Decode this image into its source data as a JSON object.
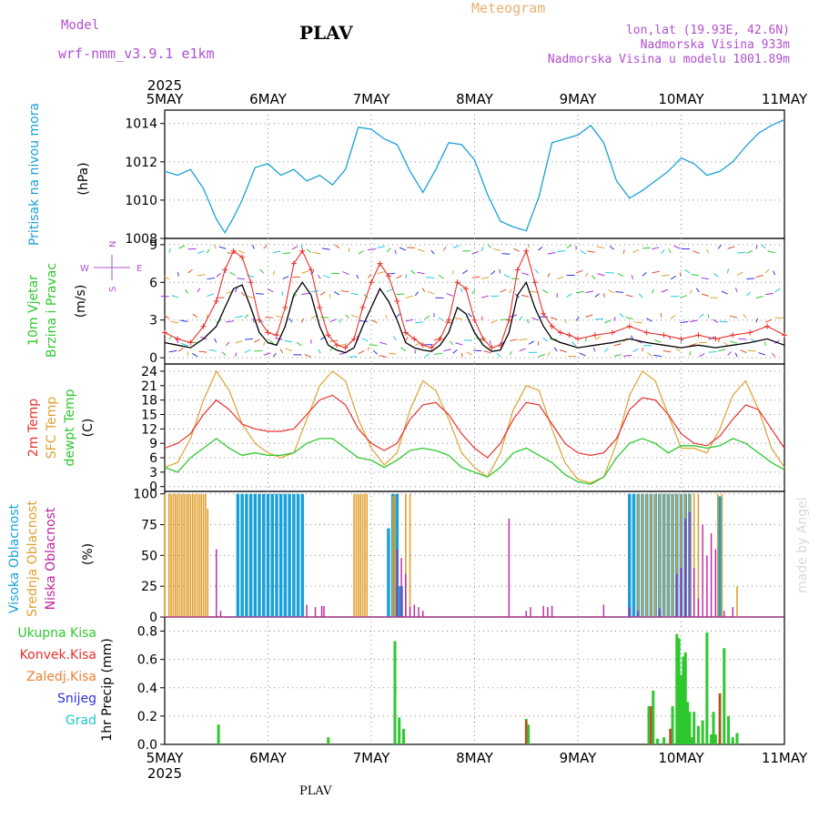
{
  "header": {
    "model_label": "Model",
    "model_name": "wrf-nmm_v3.9.1  e1km",
    "station": "PLAV",
    "product": "Meteogram",
    "lonlat": "lon,lat (19.93E, 42.6N)",
    "altitude": "Nadmorska Visina 933m",
    "model_altitude": "Nadmorska Visina u modelu 1001.89m",
    "footer_station": "PLAV",
    "watermark": "made by Angel"
  },
  "colors": {
    "pressure": "#1aa0d8",
    "wind_speed": "#000000",
    "gust": "#e8302a",
    "t2m": "#e8302a",
    "tsfc": "#e0a030",
    "dewpoint": "#2ec82e",
    "cloud_high": "#1aa0d8",
    "cloud_mid": "#e0a030",
    "cloud_low": "#c020a0",
    "rain_total": "#2ec82e",
    "rain_conv": "#e8302a",
    "rain_frz": "#f08030",
    "snow": "#3030e0",
    "hail": "#20c8c8",
    "purple_text": "#b050d0",
    "orange_text": "#e8b070"
  },
  "time_axis": {
    "year": "2025",
    "ticks": [
      "5MAY",
      "6MAY",
      "7MAY",
      "8MAY",
      "9MAY",
      "10MAY",
      "11MAY"
    ],
    "range_hours": [
      0,
      144
    ]
  },
  "chart_data": [
    {
      "type": "line",
      "panel": "pressure",
      "ylabel": "Pritisak na nivou mora",
      "unit": "(hPa)",
      "yticks": [
        1008,
        1010,
        1012,
        1014
      ],
      "ylim": [
        1008,
        1014.7
      ],
      "series": [
        {
          "x": [
            0,
            3,
            6,
            9,
            12,
            14,
            16,
            18,
            21,
            24,
            27,
            30,
            33,
            36,
            39,
            42,
            45,
            48,
            51,
            54,
            57,
            60,
            63,
            66,
            69,
            72,
            75,
            78,
            81,
            84,
            87,
            90,
            93,
            96,
            99,
            102,
            105,
            108,
            111,
            114,
            117,
            120,
            123,
            126,
            129,
            132,
            135,
            138,
            141,
            144
          ],
          "values": [
            1011.5,
            1011.3,
            1011.6,
            1010.6,
            1009.0,
            1008.3,
            1009.1,
            1010.0,
            1011.7,
            1011.9,
            1011.3,
            1011.6,
            1011.0,
            1011.3,
            1010.8,
            1011.6,
            1013.8,
            1013.7,
            1013.2,
            1012.9,
            1011.5,
            1010.4,
            1011.6,
            1013.0,
            1012.9,
            1012.1,
            1010.3,
            1008.9,
            1008.6,
            1008.4,
            1010.2,
            1013.0,
            1013.2,
            1013.4,
            1013.9,
            1013.0,
            1011.0,
            1010.1,
            1010.5,
            1011.0,
            1011.5,
            1012.2,
            1011.9,
            1011.3,
            1011.5,
            1012.0,
            1012.8,
            1013.5,
            1013.9,
            1014.2
          ]
        }
      ]
    },
    {
      "type": "line",
      "panel": "wind",
      "ylabel": "10m Vjetar",
      "ylabel2": "Brzina i Pravac",
      "unit": "(m/s)",
      "compass": {
        "n": "N",
        "s": "S",
        "w": "W",
        "e": "E"
      },
      "yticks": [
        0,
        3,
        6,
        9
      ],
      "ylim": [
        -0.5,
        9.5
      ],
      "series": [
        {
          "name": "speed",
          "x": [
            0,
            3,
            6,
            9,
            12,
            14,
            16,
            18,
            20,
            22,
            24,
            26,
            28,
            30,
            32,
            34,
            36,
            38,
            40,
            42,
            44,
            46,
            48,
            50,
            52,
            54,
            56,
            58,
            60,
            62,
            64,
            66,
            68,
            70,
            72,
            74,
            76,
            78,
            80,
            82,
            84,
            86,
            88,
            90,
            92,
            94,
            96,
            100,
            104,
            108,
            112,
            116,
            120,
            124,
            128,
            132,
            136,
            140,
            144
          ],
          "values": [
            1.2,
            1.0,
            0.8,
            1.5,
            2.5,
            4.0,
            5.5,
            5.8,
            4.0,
            2.0,
            1.2,
            1.0,
            2.5,
            5.0,
            6.0,
            5.0,
            2.5,
            1.0,
            0.6,
            0.4,
            0.8,
            2.5,
            4.0,
            5.5,
            4.5,
            3.0,
            1.2,
            0.8,
            0.6,
            0.5,
            1.0,
            2.0,
            4.0,
            3.5,
            2.0,
            1.0,
            0.5,
            0.6,
            2.0,
            5.0,
            6.0,
            4.0,
            2.5,
            1.5,
            1.2,
            1.0,
            0.8,
            1.0,
            1.2,
            1.5,
            1.2,
            1.0,
            0.8,
            1.0,
            0.8,
            1.0,
            1.2,
            1.5,
            1.0
          ]
        },
        {
          "name": "gust",
          "x": [
            0,
            3,
            6,
            9,
            12,
            14,
            16,
            18,
            20,
            22,
            24,
            26,
            28,
            30,
            32,
            34,
            36,
            38,
            40,
            42,
            44,
            46,
            48,
            50,
            52,
            54,
            56,
            58,
            60,
            62,
            64,
            66,
            68,
            70,
            72,
            74,
            76,
            78,
            80,
            82,
            84,
            86,
            88,
            90,
            92,
            94,
            96,
            100,
            104,
            108,
            112,
            116,
            120,
            124,
            128,
            132,
            136,
            140,
            144
          ],
          "values": [
            2.0,
            1.5,
            1.2,
            2.5,
            4.5,
            7.0,
            8.5,
            8.0,
            6.0,
            3.0,
            2.0,
            1.8,
            4.0,
            7.5,
            8.5,
            7.0,
            4.0,
            1.8,
            1.0,
            0.8,
            1.5,
            4.0,
            6.0,
            7.5,
            6.5,
            4.5,
            2.0,
            1.5,
            1.0,
            0.8,
            1.5,
            3.0,
            6.0,
            5.5,
            3.0,
            1.5,
            0.8,
            1.0,
            3.0,
            7.0,
            8.5,
            6.0,
            3.5,
            2.5,
            2.0,
            1.8,
            1.5,
            1.8,
            2.0,
            2.5,
            2.0,
            1.8,
            1.5,
            1.8,
            1.5,
            1.8,
            2.0,
            2.5,
            1.8
          ]
        }
      ]
    },
    {
      "type": "line",
      "panel": "temperature",
      "ylabel": "2m Temp",
      "ylabel2": "SFC Temp",
      "ylabel3": "dewpt Temp",
      "unit": "(C)",
      "yticks": [
        0,
        3,
        6,
        9,
        12,
        15,
        18,
        21,
        24
      ],
      "ylim": [
        -1,
        25.5
      ],
      "series": [
        {
          "name": "2m",
          "x": [
            0,
            3,
            6,
            9,
            12,
            15,
            18,
            21,
            24,
            27,
            30,
            33,
            36,
            39,
            42,
            45,
            48,
            51,
            54,
            57,
            60,
            63,
            66,
            69,
            72,
            75,
            78,
            81,
            84,
            87,
            90,
            93,
            96,
            99,
            102,
            105,
            108,
            111,
            114,
            117,
            120,
            123,
            126,
            129,
            132,
            135,
            138,
            141,
            144
          ],
          "values": [
            8,
            9,
            11,
            15,
            18,
            16,
            13,
            12,
            11.5,
            11.5,
            12,
            15,
            18,
            19,
            17,
            12,
            9,
            7.5,
            9,
            14,
            17,
            17.5,
            15,
            11,
            8,
            6,
            9,
            14,
            17.5,
            17,
            13,
            9,
            7,
            6.5,
            7,
            10,
            16,
            18.5,
            18,
            15,
            11,
            9,
            8.5,
            10.5,
            14,
            17,
            16,
            12,
            8
          ]
        },
        {
          "name": "sfc",
          "x": [
            0,
            3,
            6,
            9,
            12,
            15,
            18,
            21,
            24,
            27,
            30,
            33,
            36,
            39,
            42,
            45,
            48,
            51,
            54,
            57,
            60,
            63,
            66,
            69,
            72,
            75,
            78,
            81,
            84,
            87,
            90,
            93,
            96,
            99,
            102,
            105,
            108,
            111,
            114,
            117,
            120,
            123,
            126,
            129,
            132,
            135,
            138,
            141,
            144
          ],
          "values": [
            4,
            5,
            10,
            18,
            24,
            20,
            13,
            9,
            7,
            6,
            7,
            14,
            21,
            24,
            22,
            14,
            8,
            4.5,
            7,
            16,
            22,
            20,
            14,
            7,
            4,
            2,
            7,
            16,
            21,
            20,
            12,
            5,
            1.5,
            0.8,
            2,
            9,
            19,
            24,
            22,
            15,
            8,
            8,
            7,
            12,
            19,
            22,
            16,
            8,
            4
          ]
        },
        {
          "name": "dewpoint",
          "x": [
            0,
            3,
            6,
            9,
            12,
            15,
            18,
            21,
            24,
            27,
            30,
            33,
            36,
            39,
            42,
            45,
            48,
            51,
            54,
            57,
            60,
            63,
            66,
            69,
            72,
            75,
            78,
            81,
            84,
            87,
            90,
            93,
            96,
            99,
            102,
            105,
            108,
            111,
            114,
            117,
            120,
            123,
            126,
            129,
            132,
            135,
            138,
            141,
            144
          ],
          "values": [
            4,
            3,
            6,
            8,
            10,
            8,
            6.5,
            7,
            6.5,
            6.5,
            7,
            9,
            10,
            10,
            8,
            6,
            5.5,
            4,
            5.5,
            7.5,
            8,
            7.5,
            6.5,
            4,
            3,
            2,
            4,
            7,
            8,
            6.5,
            5,
            2.5,
            1,
            0.5,
            2,
            6,
            9,
            10,
            9,
            7,
            8.5,
            8.5,
            8,
            8.5,
            10,
            9,
            7,
            5,
            3.5
          ]
        }
      ]
    },
    {
      "type": "bar",
      "panel": "clouds",
      "ylabel": "Visoka Oblacnost",
      "ylabel2": "Srednja Oblacnost",
      "ylabel3": "Niska Oblacnost",
      "unit": "(%)",
      "yticks": [
        0,
        25,
        50,
        75,
        100
      ],
      "ylim": [
        0,
        102
      ],
      "series": [
        {
          "name": "high",
          "x": [
            17,
            18,
            19,
            20,
            21,
            22,
            23,
            24,
            25,
            26,
            27,
            28,
            29,
            30,
            31,
            32,
            52,
            53,
            54,
            54.5,
            55,
            108,
            109,
            110,
            111,
            112,
            113,
            114,
            115,
            116,
            117,
            118,
            119,
            120,
            121,
            122,
            129
          ],
          "values": [
            100,
            100,
            100,
            100,
            100,
            100,
            100,
            100,
            100,
            100,
            100,
            100,
            100,
            100,
            100,
            100,
            72,
            100,
            100,
            25,
            25,
            100,
            100,
            100,
            100,
            100,
            100,
            100,
            100,
            100,
            100,
            100,
            100,
            100,
            100,
            100,
            98
          ]
        },
        {
          "name": "mid",
          "x": [
            0,
            1,
            1.5,
            2,
            2.5,
            3,
            3.5,
            4,
            4.5,
            5,
            5.5,
            6,
            6.5,
            7,
            7.5,
            8,
            8.5,
            9,
            9.5,
            10,
            44,
            44.5,
            45,
            45.5,
            46,
            46.5,
            47,
            53,
            53.5,
            56,
            57,
            110,
            111,
            112,
            113,
            114,
            115,
            116,
            117,
            118,
            119,
            120,
            121,
            122,
            123,
            124,
            128.5,
            129.5,
            133
          ],
          "values": [
            100,
            100,
            100,
            100,
            100,
            100,
            100,
            100,
            100,
            100,
            100,
            100,
            100,
            100,
            100,
            100,
            100,
            100,
            100,
            88,
            100,
            100,
            100,
            100,
            100,
            100,
            100,
            98,
            100,
            100,
            100,
            100,
            100,
            100,
            100,
            100,
            100,
            100,
            100,
            100,
            100,
            100,
            100,
            100,
            100,
            100,
            100,
            100,
            25
          ]
        },
        {
          "name": "low",
          "x": [
            12,
            13,
            33,
            35,
            36.5,
            37,
            54,
            55,
            56,
            57,
            58,
            59,
            60,
            80,
            84,
            85,
            88,
            89,
            90,
            102,
            108,
            110,
            115,
            119,
            120,
            121,
            122,
            123,
            124,
            125,
            126,
            127,
            128,
            130,
            132
          ],
          "values": [
            55,
            5,
            10,
            8,
            9,
            9,
            55,
            48,
            35,
            8,
            10,
            8,
            5,
            80,
            5,
            8,
            9,
            8,
            9,
            10,
            8,
            5,
            7,
            35,
            40,
            80,
            85,
            40,
            15,
            75,
            50,
            68,
            55,
            5,
            8
          ]
        }
      ]
    },
    {
      "type": "bar",
      "panel": "precipitation",
      "ylabel": "1hr Precip (mm)",
      "legend": [
        "Ukupna Kisa",
        "Konvek.Kisa",
        "Zaledj.Kisa",
        "Snijeg",
        "Grad"
      ],
      "yticks": [
        0.0,
        0.2,
        0.4,
        0.6,
        0.8
      ],
      "ylim": [
        0,
        0.9
      ],
      "series": [
        {
          "name": "Ukupna Kisa",
          "x": [
            12.5,
            38,
            53.5,
            54.5,
            55.5,
            84,
            84.5,
            112.5,
            113.5,
            114.5,
            116,
            117.5,
            118,
            119,
            119.5,
            120,
            120.5,
            121,
            121.5,
            122,
            122.5,
            123,
            124,
            125,
            126,
            127,
            127.5,
            128,
            129,
            130,
            131,
            132,
            133
          ],
          "values": [
            0.14,
            0.05,
            0.73,
            0.19,
            0.11,
            0.18,
            0.14,
            0.27,
            0.38,
            0.04,
            0.05,
            0.11,
            0.27,
            0.78,
            0.75,
            0.49,
            0.62,
            0.65,
            0.3,
            0.23,
            0.05,
            0.23,
            0.13,
            0.17,
            0.79,
            0.07,
            0.23,
            0.07,
            0.36,
            0.68,
            0.2,
            0.05,
            0.08
          ]
        },
        {
          "name": "Konvek.Kisa",
          "x": [
            84,
            113,
            117.5,
            129
          ],
          "values": [
            0.17,
            0.27,
            0.11,
            0.36
          ]
        }
      ]
    }
  ]
}
